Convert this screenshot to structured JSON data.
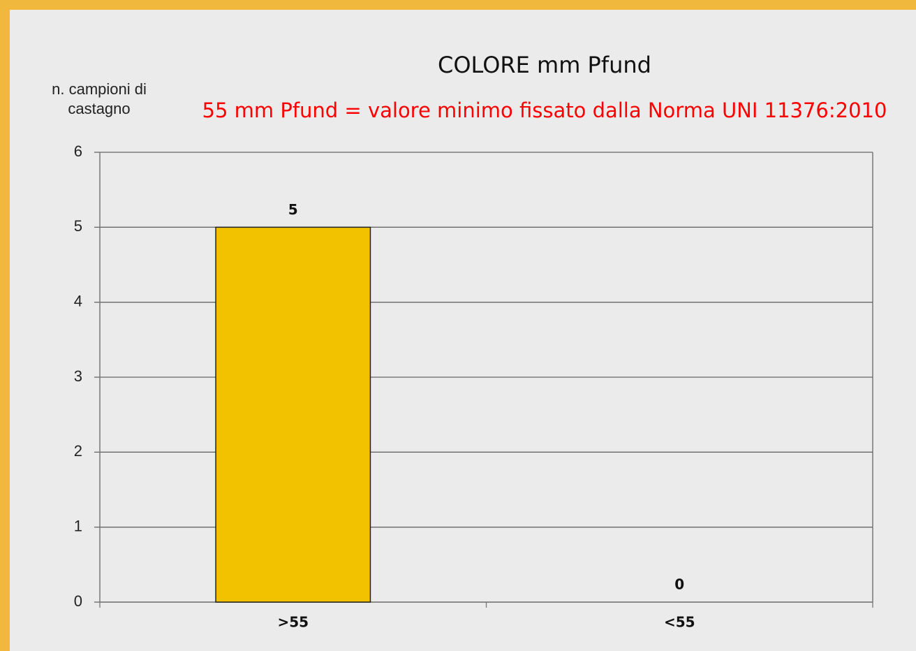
{
  "chart_data": {
    "type": "bar",
    "title": "COLORE mm Pfund",
    "subtitle": "55 mm Pfund = valore minimo fissato dalla Norma UNI 11376:2010",
    "y_label": "n. campioni di castagno",
    "categories": [
      ">55",
      "<55"
    ],
    "values": [
      5,
      0
    ],
    "color": "#f2c200",
    "subtitle_color": "#ff0000",
    "ylim": [
      0,
      6
    ],
    "yticks": [
      0,
      1,
      2,
      3,
      4,
      5,
      6
    ],
    "grid": true
  }
}
